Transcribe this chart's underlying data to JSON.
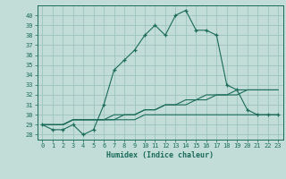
{
  "title": "",
  "xlabel": "Humidex (Indice chaleur)",
  "background_color": "#c2ddd8",
  "grid_color": "#9dc4be",
  "line_color": "#1a6b5a",
  "x_data": [
    0,
    1,
    2,
    3,
    4,
    5,
    6,
    7,
    8,
    9,
    10,
    11,
    12,
    13,
    14,
    15,
    16,
    17,
    18,
    19,
    20,
    21,
    22,
    23
  ],
  "y_main": [
    29,
    28.5,
    28.5,
    29,
    28,
    28.5,
    31,
    34.5,
    35.5,
    36.5,
    38,
    39,
    38,
    40,
    40.5,
    38.5,
    38.5,
    38,
    33,
    32.5,
    30.5,
    30,
    30,
    30
  ],
  "y_line1": [
    29,
    29,
    29,
    29.5,
    29.5,
    29.5,
    29.5,
    30,
    30,
    30,
    30.5,
    30.5,
    31,
    31,
    31.5,
    31.5,
    32,
    32,
    32,
    32.5,
    32.5,
    32.5,
    32.5,
    32.5
  ],
  "y_line2": [
    29,
    29,
    29,
    29.5,
    29.5,
    29.5,
    29.5,
    29.5,
    29.5,
    29.5,
    30,
    30,
    30,
    30,
    30,
    30,
    30,
    30,
    30,
    30,
    30,
    30,
    30,
    30
  ],
  "y_line3": [
    29,
    29,
    29,
    29.5,
    29.5,
    29.5,
    29.5,
    29.5,
    30,
    30,
    30.5,
    30.5,
    31,
    31,
    31,
    31.5,
    31.5,
    32,
    32,
    32,
    32.5,
    32.5,
    32.5,
    32.5
  ],
  "ylim": [
    27.5,
    41
  ],
  "xlim": [
    -0.5,
    23.5
  ],
  "yticks": [
    28,
    29,
    30,
    31,
    32,
    33,
    34,
    35,
    36,
    37,
    38,
    39,
    40
  ],
  "xticks": [
    0,
    1,
    2,
    3,
    4,
    5,
    6,
    7,
    8,
    9,
    10,
    11,
    12,
    13,
    14,
    15,
    16,
    17,
    18,
    19,
    20,
    21,
    22,
    23
  ]
}
